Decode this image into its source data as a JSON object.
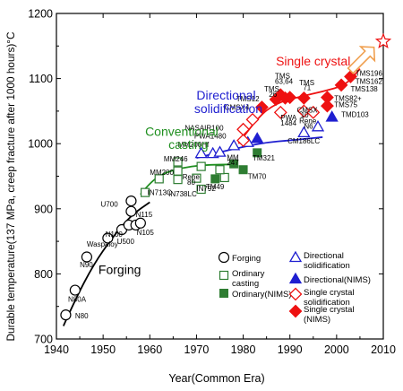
{
  "chart_data": {
    "type": "scatter",
    "title": "",
    "xlabel": "Year(Common Era)",
    "ylabel": "Durable temperature(137 MPa, creep fracture after 1000 hours)°C",
    "xlim": [
      1940,
      2010
    ],
    "ylim": [
      700,
      1200
    ],
    "xticks": [
      1940,
      1950,
      1960,
      1970,
      1980,
      1990,
      2000,
      2010
    ],
    "yticks": [
      700,
      800,
      900,
      1000,
      1100,
      1200
    ],
    "grid": false,
    "legend_position": "bottom-right",
    "colors": {
      "forging": "#000000",
      "ordinary": "#2e7d32",
      "directional": "#1f1fd0",
      "single_crystal": "#ee1111",
      "future_arrow": "#f0a050",
      "future_star": "#ee1111"
    },
    "legend": [
      {
        "label": "Forging",
        "marker": "circle-open",
        "color": "#000000"
      },
      {
        "label": "Directional solidification",
        "marker": "triangle-open",
        "color": "#1f1fd0"
      },
      {
        "label": "Ordinary casting",
        "marker": "square-open",
        "color": "#2e7d32"
      },
      {
        "label": "Directional(NIMS)",
        "marker": "triangle-filled",
        "color": "#1f1fd0"
      },
      {
        "label": "Ordinary(NIMS)",
        "marker": "square-filled",
        "color": "#2e7d32"
      },
      {
        "label": "Single crystal solidification",
        "marker": "diamond-open",
        "color": "#ee1111"
      },
      {
        "label": "Single crystal (NIMS)",
        "marker": "diamond-filled",
        "color": "#ee1111"
      }
    ],
    "category_labels": [
      {
        "text": "Forging",
        "x": 1949,
        "y": 800,
        "color": "#000000",
        "size": "big"
      },
      {
        "text": "Conventional",
        "x": 1959,
        "y": 1012,
        "color": "#1f8f1f",
        "size": "big"
      },
      {
        "text": "casting",
        "x": 1964,
        "y": 992,
        "color": "#1f8f1f",
        "size": "big"
      },
      {
        "text": "Directional",
        "x": 1970,
        "y": 1068,
        "color": "#1f1fd0",
        "size": "big"
      },
      {
        "text": "solidification",
        "x": 1969.5,
        "y": 1047,
        "color": "#1f1fd0",
        "size": "big"
      },
      {
        "text": "Single crystal",
        "x": 1987,
        "y": 1120,
        "color": "#ee1111",
        "size": "big"
      }
    ],
    "series": [
      {
        "name": "Forging",
        "marker": "circle-open",
        "color": "#000000",
        "points": [
          {
            "x": 1942,
            "y": 737,
            "label": "N80",
            "lx": 1944,
            "ly": 732
          },
          {
            "x": 1944,
            "y": 775,
            "label": "N80A",
            "lx": 1942.5,
            "ly": 757
          },
          {
            "x": 1946.5,
            "y": 826,
            "label": "N90",
            "lx": 1945,
            "ly": 810
          },
          {
            "x": 1951,
            "y": 855,
            "label": "Waspaloy",
            "lx": 1946.5,
            "ly": 842
          },
          {
            "x": 1954,
            "y": 868,
            "label": "N100",
            "lx": 1950.5,
            "ly": 857
          },
          {
            "x": 1955.5,
            "y": 875,
            "label": "U500",
            "lx": 1953,
            "ly": 846
          },
          {
            "x": 1957,
            "y": 875,
            "label": "N105",
            "lx": 1957.2,
            "ly": 860
          },
          {
            "x": 1958,
            "y": 878,
            "label": "",
            "lx": 0,
            "ly": 0
          },
          {
            "x": 1956,
            "y": 896,
            "label": "N115",
            "lx": 1957,
            "ly": 887
          },
          {
            "x": 1956,
            "y": 912,
            "label": "U700",
            "lx": 1949.5,
            "ly": 903
          }
        ]
      },
      {
        "name": "Ordinary casting",
        "marker": "square-open",
        "color": "#2e7d32",
        "points": [
          {
            "x": 1959,
            "y": 925,
            "label": "IN713C",
            "lx": 1959.5,
            "ly": 921
          },
          {
            "x": 1962,
            "y": 946,
            "label": "",
            "lx": 0,
            "ly": 0
          },
          {
            "x": 1966,
            "y": 945,
            "label": "",
            "lx": 0,
            "ly": 0
          },
          {
            "x": 1966,
            "y": 958,
            "label": "MM200",
            "lx": 1960,
            "ly": 952
          },
          {
            "x": 1966,
            "y": 972,
            "label": "MM246",
            "lx": 1963,
            "ly": 973
          },
          {
            "x": 1970,
            "y": 947,
            "label": "",
            "lx": 0,
            "ly": 0
          },
          {
            "x": 1971,
            "y": 930,
            "label": "IN738LC",
            "lx": 1964,
            "ly": 919
          },
          {
            "x": 1971,
            "y": 965,
            "label": "",
            "lx": 0,
            "ly": 0
          },
          {
            "x": 1976,
            "y": 948,
            "label": "",
            "lx": 0,
            "ly": 0
          },
          {
            "x": 1975,
            "y": 960,
            "label": "",
            "lx": 0,
            "ly": 0
          }
        ],
        "extra_labels": [
          {
            "text": "Rene",
            "x": 1967,
            "y": 945
          },
          {
            "text": "80",
            "x": 1968,
            "y": 937
          },
          {
            "text": "IN792",
            "x": 1970,
            "y": 927
          },
          {
            "text": "MM",
            "x": 1976.5,
            "y": 975
          },
          {
            "text": "247",
            "x": 1976.5,
            "y": 967
          }
        ]
      },
      {
        "name": "Ordinary(NIMS)",
        "marker": "square-filled",
        "color": "#2e7d32",
        "points": [
          {
            "x": 1974,
            "y": 946,
            "label": "",
            "lx": 0,
            "ly": 0
          },
          {
            "x": 1978,
            "y": 969,
            "label": "",
            "lx": 0,
            "ly": 0
          },
          {
            "x": 1980,
            "y": 960,
            "label": "TM70",
            "lx": 1981,
            "ly": 946
          },
          {
            "x": 1983,
            "y": 986,
            "label": "TM321",
            "lx": 1982,
            "ly": 974
          }
        ],
        "extra_labels": [
          {
            "text": "TM49",
            "x": 1972,
            "y": 930
          }
        ]
      },
      {
        "name": "Directional solidification",
        "marker": "triangle-open",
        "color": "#1f1fd0",
        "points": [
          {
            "x": 1971,
            "y": 985,
            "label": "",
            "lx": 0,
            "ly": 0
          },
          {
            "x": 1973.5,
            "y": 985,
            "label": "MM200Hf",
            "lx": 1966,
            "ly": 995
          },
          {
            "x": 1975,
            "y": 987,
            "label": "",
            "lx": 0,
            "ly": 0
          },
          {
            "x": 1978,
            "y": 997,
            "label": "",
            "lx": 0,
            "ly": 0
          },
          {
            "x": 1981,
            "y": 1002,
            "label": "",
            "lx": 0,
            "ly": 0
          },
          {
            "x": 1993,
            "y": 1017,
            "label": "CM186LC",
            "lx": 1989.5,
            "ly": 1000
          },
          {
            "x": 1996,
            "y": 1026,
            "label": "",
            "lx": 0,
            "ly": 0
          }
        ]
      },
      {
        "name": "Directional(NIMS)",
        "marker": "triangle-filled",
        "color": "#1f1fd0",
        "points": [
          {
            "x": 1983,
            "y": 1008,
            "label": "",
            "lx": 0,
            "ly": 0
          },
          {
            "x": 1999,
            "y": 1041,
            "label": "TMD103",
            "lx": 2001,
            "ly": 1041
          }
        ]
      },
      {
        "name": "Single crystal solidification",
        "marker": "diamond-open",
        "color": "#ee1111",
        "points": [
          {
            "x": 1980,
            "y": 1005,
            "label": "",
            "lx": 0,
            "ly": 0
          },
          {
            "x": 1980,
            "y": 1022,
            "label": "NASAIR100",
            "lx": 1967.5,
            "ly": 1020
          },
          {
            "x": 1982,
            "y": 1037,
            "label": "CMSX4",
            "lx": 1976,
            "ly": 1052
          },
          {
            "x": 1988,
            "y": 1048,
            "label": "",
            "lx": 0,
            "ly": 0
          },
          {
            "x": 1993,
            "y": 1050,
            "label": "CMSX",
            "lx": 1991.5,
            "ly": 1048
          },
          {
            "x": 1995,
            "y": 1048,
            "label": "",
            "lx": 0,
            "ly": 0
          }
        ],
        "extra_labels": [
          {
            "text": "PWA1480",
            "x": 1969.5,
            "y": 1008
          },
          {
            "text": "PWA",
            "x": 1988,
            "y": 1036
          },
          {
            "text": "1484",
            "x": 1988,
            "y": 1028
          },
          {
            "text": "10",
            "x": 1992.3,
            "y": 1040
          },
          {
            "text": "Rene",
            "x": 1992,
            "y": 1031
          },
          {
            "text": "N6",
            "x": 1993,
            "y": 1023
          }
        ]
      },
      {
        "name": "Single crystal (NIMS)",
        "marker": "diamond-filled",
        "color": "#ee1111",
        "points": [
          {
            "x": 1984,
            "y": 1056,
            "label": "TMS12",
            "lx": 1978.5,
            "ly": 1065
          },
          {
            "x": 1987,
            "y": 1068,
            "label": "",
            "lx": 0,
            "ly": 0
          },
          {
            "x": 1988,
            "y": 1075,
            "label": "TMS",
            "lx": 1984.5,
            "ly": 1080
          },
          {
            "x": 1989,
            "y": 1070,
            "label": "",
            "lx": 0,
            "ly": 0
          },
          {
            "x": 1990,
            "y": 1071,
            "label": "TMS",
            "lx": 1986.8,
            "ly": 1100
          },
          {
            "x": 1993,
            "y": 1070,
            "label": "TMS",
            "lx": 1992,
            "ly": 1090
          },
          {
            "x": 1998,
            "y": 1071,
            "label": "",
            "lx": 0,
            "ly": 0
          },
          {
            "x": 1998,
            "y": 1058,
            "label": "TMS75",
            "lx": 1999.5,
            "ly": 1056
          },
          {
            "x": 2001,
            "y": 1090,
            "label": "TMS138",
            "lx": 2003,
            "ly": 1080
          },
          {
            "x": 2003,
            "y": 1103,
            "label": "TMS162",
            "lx": 2004,
            "ly": 1092
          }
        ],
        "extra_labels": [
          {
            "text": "26",
            "x": 1985.5,
            "y": 1072
          },
          {
            "text": "63,64",
            "x": 1986.8,
            "y": 1092
          },
          {
            "text": "71",
            "x": 1992.8,
            "y": 1082
          },
          {
            "text": "TMS82+",
            "x": 1999.5,
            "y": 1066
          },
          {
            "text": "TMS196",
            "x": 2004,
            "y": 1104
          }
        ]
      }
    ],
    "trend_curves": [
      {
        "name": "forging-trend",
        "color": "#000000",
        "points": [
          [
            1941.5,
            720
          ],
          [
            1944,
            760
          ],
          [
            1948,
            815
          ],
          [
            1952,
            856
          ],
          [
            1956,
            890
          ],
          [
            1960,
            910
          ]
        ]
      },
      {
        "name": "casting-trend",
        "color": "#1f8f1f",
        "points": [
          [
            1958,
            922
          ],
          [
            1960,
            940
          ],
          [
            1963,
            955
          ],
          [
            1967,
            963
          ],
          [
            1971,
            967
          ],
          [
            1975,
            968
          ],
          [
            1978,
            968
          ]
        ]
      },
      {
        "name": "directional-trend",
        "color": "#1f1fd0",
        "points": [
          [
            1970,
            978
          ],
          [
            1975,
            987
          ],
          [
            1980,
            995
          ],
          [
            1985,
            1002
          ],
          [
            1990,
            1005
          ],
          [
            1997,
            1010
          ]
        ]
      },
      {
        "name": "single-crystal-trend",
        "color": "#ee1111",
        "points": [
          [
            1979,
            1000
          ],
          [
            1983,
            1040
          ],
          [
            1987,
            1062
          ],
          [
            1992,
            1072
          ],
          [
            1997,
            1080
          ],
          [
            2002,
            1090
          ],
          [
            2005,
            1115
          ]
        ]
      }
    ],
    "future_arrow": {
      "from": [
        2003,
        1112
      ],
      "to": [
        2008,
        1148
      ]
    },
    "future_star": {
      "x": 2010,
      "y": 1157
    }
  }
}
